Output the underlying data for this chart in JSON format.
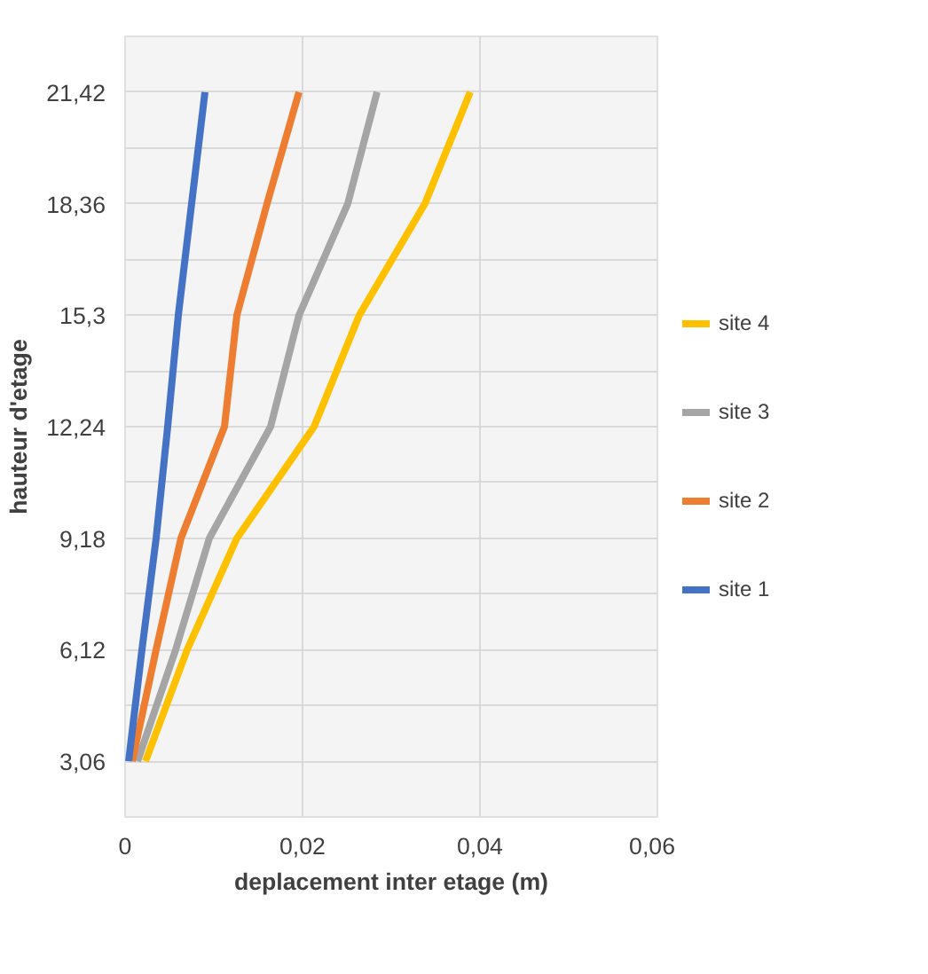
{
  "chart_data": {
    "type": "line",
    "xlabel": "deplacement inter etage (m)",
    "ylabel": "hauteur d'etage",
    "xlim": [
      0,
      0.06
    ],
    "xticks": [
      0,
      {
        "value": 0.02,
        "label": "0,02"
      },
      {
        "value": 0.04,
        "label": "0,04"
      },
      {
        "value": 0.06,
        "label": "0,06"
      }
    ],
    "ylim": [
      1.53,
      22.95
    ],
    "yticks": [
      {
        "value": 1.53,
        "label": null
      },
      {
        "value": 3.06,
        "label": "3,06"
      },
      {
        "value": 4.59,
        "label": null
      },
      {
        "value": 6.12,
        "label": "6,12"
      },
      {
        "value": 7.65,
        "label": null
      },
      {
        "value": 9.18,
        "label": "9,18"
      },
      {
        "value": 10.71,
        "label": null
      },
      {
        "value": 12.24,
        "label": "12,24"
      },
      {
        "value": 13.77,
        "label": null
      },
      {
        "value": 15.3,
        "label": "15,3"
      },
      {
        "value": 16.83,
        "label": null
      },
      {
        "value": 18.36,
        "label": "18,36"
      },
      {
        "value": 19.89,
        "label": null
      },
      {
        "value": 21.42,
        "label": "21,42"
      },
      {
        "value": 22.95,
        "label": null
      }
    ],
    "grid": true,
    "legend": "right",
    "line_style": "solid",
    "series": [
      {
        "name": "site 4",
        "color": "#ffc000",
        "x": [
          0.0023,
          0.007,
          0.0126,
          0.0213,
          0.0264,
          0.0338,
          0.0389
        ],
        "values": [
          3.06,
          6.12,
          9.18,
          12.24,
          15.3,
          18.36,
          21.42
        ]
      },
      {
        "name": "site 3",
        "color": "#a5a5a5",
        "x": [
          0.0014,
          0.0057,
          0.0095,
          0.0164,
          0.0196,
          0.0251,
          0.0284
        ],
        "values": [
          3.06,
          6.12,
          9.18,
          12.24,
          15.3,
          18.36,
          21.42
        ]
      },
      {
        "name": "site 2",
        "color": "#ed7d31",
        "x": [
          0.0008,
          0.0035,
          0.0063,
          0.0112,
          0.0126,
          0.016,
          0.0196
        ],
        "values": [
          3.06,
          6.12,
          9.18,
          12.24,
          15.3,
          18.36,
          21.42
        ]
      },
      {
        "name": "site 1",
        "color": "#4472c4",
        "x": [
          0.0004,
          0.0019,
          0.0035,
          0.0048,
          0.006,
          0.0075,
          0.009
        ],
        "values": [
          3.06,
          6.12,
          9.18,
          12.24,
          15.3,
          18.36,
          21.42
        ]
      }
    ]
  }
}
